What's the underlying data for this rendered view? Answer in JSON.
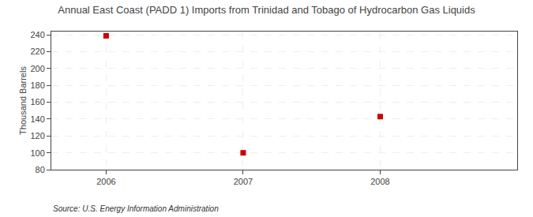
{
  "chart_data": {
    "type": "scatter",
    "title": "Annual East Coast (PADD 1) Imports from Trinidad and Tobago of Hydrocarbon Gas Liquids",
    "ylabel": "Thousand Barrels",
    "annotations": [
      "Source: U.S. Energy Information Administration"
    ],
    "x": [
      2006,
      2007,
      2008
    ],
    "values": [
      239,
      100,
      143
    ],
    "color": "#cc0000",
    "marker": "square",
    "xlim": [
      2005.6,
      2009.0
    ],
    "xticks": [
      2006,
      2007,
      2008
    ],
    "ylim": [
      80,
      244
    ],
    "yticks": [
      80,
      100,
      120,
      140,
      160,
      180,
      200,
      220,
      240
    ],
    "grid": true
  }
}
